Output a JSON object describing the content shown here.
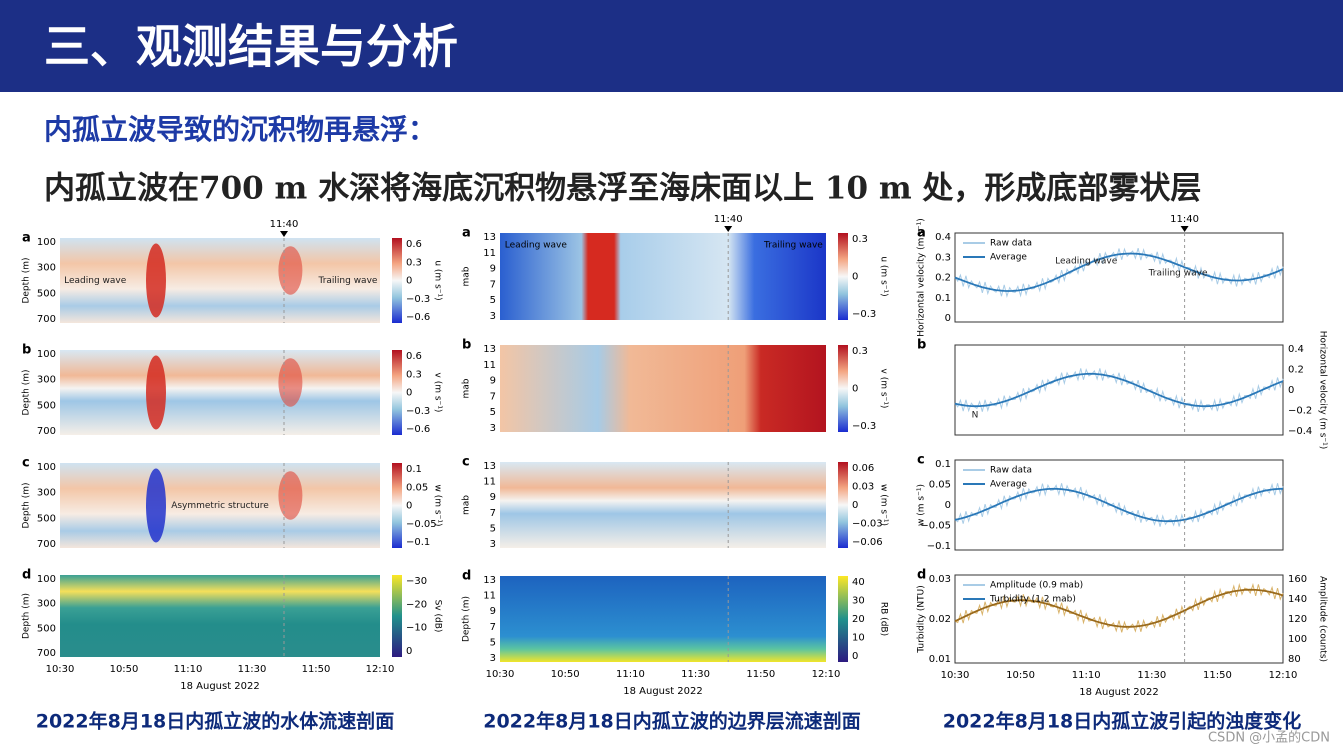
{
  "header": {
    "title": "三、观测结果与分析"
  },
  "subtitle": "内孤立波导致的沉积物再悬浮：",
  "statement": "内孤立波在700 m 水深将海底沉积物悬浮至海床面以上 10 m 处，形成底部雾状层",
  "figures": [
    {
      "marker": "11:40",
      "xticks": [
        "10:30",
        "10:50",
        "11:10",
        "11:30",
        "11:50",
        "12:10"
      ],
      "xlabel": "18 August 2022",
      "caption": "2022年8月18日内孤立波的水体流速剖面",
      "panels": [
        {
          "letter": "a",
          "ylabel": "Depth (m)",
          "yticks": [
            "100",
            "300",
            "500",
            "700"
          ],
          "cbar_label": "u (m s⁻¹)",
          "cbar_ticks": [
            "0.6",
            "0.3",
            "0",
            "−0.3",
            "−0.6"
          ],
          "notes": [
            "Leading wave",
            "Trailing wave"
          ]
        },
        {
          "letter": "b",
          "ylabel": "Depth (m)",
          "yticks": [
            "100",
            "300",
            "500",
            "700"
          ],
          "cbar_label": "v (m s⁻¹)",
          "cbar_ticks": [
            "0.6",
            "0.3",
            "0",
            "−0.3",
            "−0.6"
          ]
        },
        {
          "letter": "c",
          "ylabel": "Depth (m)",
          "yticks": [
            "100",
            "300",
            "500",
            "700"
          ],
          "cbar_label": "w (m s⁻¹)",
          "cbar_ticks": [
            "0.1",
            "0.05",
            "0",
            "−0.05",
            "−0.1"
          ],
          "notes": [
            "Asymmetric structure"
          ]
        },
        {
          "letter": "d",
          "ylabel": "Depth (m)",
          "yticks": [
            "100",
            "300",
            "500",
            "700"
          ],
          "cbar_label": "Sv (dB)",
          "cbar_ticks": [
            "−30",
            "−20",
            "−10",
            "0"
          ]
        }
      ]
    },
    {
      "marker": "11:40",
      "xticks": [
        "10:30",
        "10:50",
        "11:10",
        "11:30",
        "11:50",
        "12:10"
      ],
      "xlabel": "18 August 2022",
      "caption": "2022年8月18日内孤立波的边界层流速剖面",
      "panels": [
        {
          "letter": "a",
          "ylabel": "mab",
          "yticks": [
            "13",
            "11",
            "9",
            "7",
            "5",
            "3"
          ],
          "cbar_label": "u (m s⁻¹)",
          "cbar_ticks": [
            "0.3",
            "0",
            "−0.3"
          ],
          "notes": [
            "Leading wave",
            "Trailing wave"
          ]
        },
        {
          "letter": "b",
          "ylabel": "mab",
          "yticks": [
            "13",
            "11",
            "9",
            "7",
            "5",
            "3"
          ],
          "cbar_label": "v (m s⁻¹)",
          "cbar_ticks": [
            "0.3",
            "0",
            "−0.3"
          ]
        },
        {
          "letter": "c",
          "ylabel": "mab",
          "yticks": [
            "13",
            "11",
            "9",
            "7",
            "5",
            "3"
          ],
          "cbar_label": "w (m s⁻¹)",
          "cbar_ticks": [
            "0.06",
            "0.03",
            "0",
            "−0.03",
            "−0.06"
          ]
        },
        {
          "letter": "d",
          "ylabel": "Depth (m)",
          "yticks": [
            "13",
            "11",
            "9",
            "7",
            "5",
            "3"
          ],
          "cbar_label": "RB (dB)",
          "cbar_ticks": [
            "40",
            "30",
            "20",
            "10",
            "0"
          ]
        }
      ]
    },
    {
      "marker": "11:40",
      "xticks": [
        "10:30",
        "10:50",
        "11:10",
        "11:30",
        "11:50",
        "12:10"
      ],
      "xlabel": "18 August 2022",
      "caption": "2022年8月18日内孤立波引起的浊度变化",
      "panels": [
        {
          "letter": "a",
          "ylabel": "Horizontal velocity (m s⁻¹)",
          "yticks": [
            "0.4",
            "0.3",
            "0.2",
            "0.1",
            "0"
          ],
          "legend": [
            "Raw data",
            "Average"
          ],
          "notes": [
            "Leading wave",
            "Trailing wave"
          ]
        },
        {
          "letter": "b",
          "yticks": [],
          "y2label": "Horizontal velocity (m s⁻¹)",
          "y2ticks": [
            "0.4",
            "0.2",
            "0",
            "−0.2",
            "−0.4"
          ],
          "notes": [
            "N"
          ]
        },
        {
          "letter": "c",
          "ylabel": "w (m s⁻¹)",
          "yticks": [
            "0.1",
            "0.05",
            "0",
            "−0.05",
            "−0.1"
          ],
          "legend": [
            "Raw data",
            "Average"
          ]
        },
        {
          "letter": "d",
          "ylabel": "Turbidity (NTU)",
          "yticks": [
            "0.03",
            "0.02",
            "0.01"
          ],
          "y2label": "Amplitude (counts)",
          "y2ticks": [
            "160",
            "140",
            "120",
            "100",
            "80"
          ],
          "legend": [
            "Amplitude (0.9 mab)",
            "Turbidity (1.2 mab)"
          ]
        }
      ]
    }
  ],
  "watermark": "CSDN @小孟的CDN"
}
